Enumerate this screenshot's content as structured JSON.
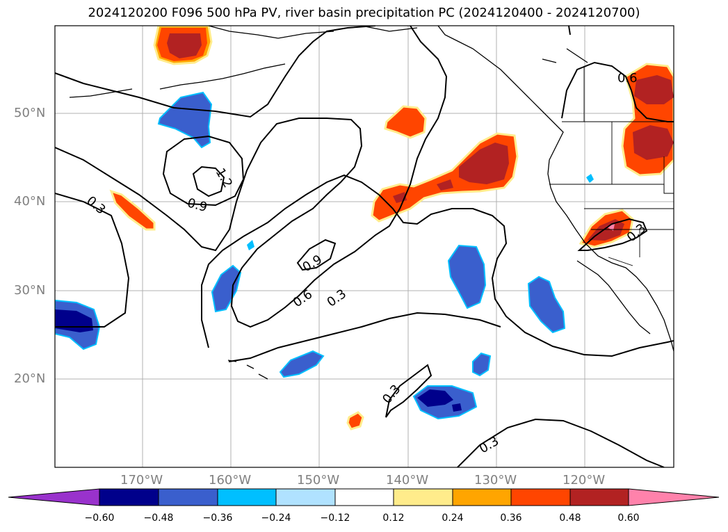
{
  "title": "2024120200 F096 500 hPa PV, river basin precipitation PC (2024120400 - 2024120700)",
  "map": {
    "lat_labels": [
      "50°N",
      "40°N",
      "30°N",
      "20°N"
    ],
    "lon_labels": [
      "170°W",
      "160°W",
      "150°W",
      "140°W",
      "130°W",
      "120°W"
    ],
    "contour_labels": [
      "1.2",
      "0.9",
      "0.3",
      "0.9",
      "0.6",
      "0.3",
      "0.3",
      "0.3",
      "0.6",
      "0.3"
    ]
  },
  "colorbar": {
    "ticks": [
      "−0.60",
      "−0.48",
      "−0.36",
      "−0.24",
      "−0.12",
      "0.12",
      "0.24",
      "0.36",
      "0.48",
      "0.60"
    ],
    "colors": [
      "#9932cc",
      "#00008b",
      "#3a5fcd",
      "#00bfff",
      "#b0e2ff",
      "#ffffff",
      "#ffec8b",
      "#ffa500",
      "#ff4500",
      "#b22222",
      "#ff82ab"
    ]
  }
}
